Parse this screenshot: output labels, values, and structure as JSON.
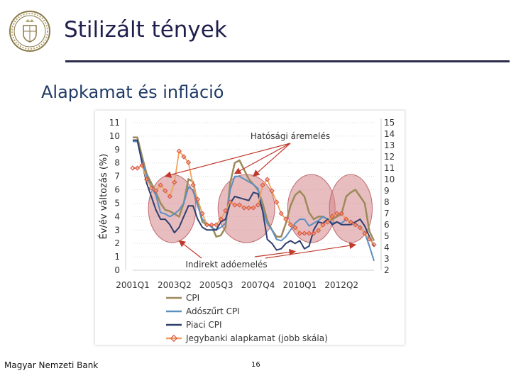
{
  "header": {
    "title": "Stilizált tények",
    "subtitle": "Alapkamat és infláció"
  },
  "footer": {
    "org": "Magyar Nemzeti Bank",
    "page": "16"
  },
  "colors": {
    "cpi": "#9c8a5a",
    "adoszurt": "#5b8fc2",
    "piaci": "#2f3f6e",
    "jegybanki": "#f0a35a",
    "jegybanki_marker": "#d9534f",
    "ellipse_fill": "#d4878a",
    "arrow": "#c0392b",
    "title": "#1f1f4d"
  },
  "chart_data": {
    "type": "line",
    "ylabel": "Év/év változás (%)",
    "ylim": [
      0,
      11
    ],
    "y2lim": [
      2,
      15
    ],
    "yticks": [
      "0",
      "1",
      "2",
      "3",
      "4",
      "5",
      "6",
      "7",
      "8",
      "9",
      "10",
      "11"
    ],
    "y2ticks": [
      "2",
      "3",
      "4",
      "5",
      "6",
      "7",
      "8",
      "9",
      "10",
      "11",
      "12",
      "13",
      "14",
      "15"
    ],
    "xticklabels": [
      {
        "label": "2001Q1",
        "i": 0
      },
      {
        "label": "2003Q2",
        "i": 9
      },
      {
        "label": "2005Q3",
        "i": 18
      },
      {
        "label": "2007Q4",
        "i": 27
      },
      {
        "label": "2010Q1",
        "i": 36
      },
      {
        "label": "2012Q2",
        "i": 45
      }
    ],
    "annotations": [
      {
        "text": "Hatósági áremelés",
        "position": "top"
      },
      {
        "text": "Indirekt adóemelés",
        "position": "bottom"
      }
    ],
    "highlight_periods": [
      {
        "start": 4,
        "end": 13
      },
      {
        "start": 19,
        "end": 30
      },
      {
        "start": 34,
        "end": 43
      },
      {
        "start": 43,
        "end": 51
      }
    ],
    "series": [
      {
        "name": "CPI",
        "axis": "left",
        "values": [
          9.9,
          9.9,
          8.5,
          7.2,
          6.5,
          5.8,
          5.0,
          4.5,
          4.4,
          4.2,
          4.0,
          5.0,
          6.8,
          6.6,
          5.0,
          3.6,
          3.4,
          3.3,
          2.5,
          2.6,
          3.2,
          6.5,
          8.0,
          8.2,
          7.5,
          6.8,
          6.4,
          6.0,
          5.0,
          3.7,
          3.0,
          2.5,
          2.5,
          3.5,
          4.8,
          5.6,
          5.9,
          5.5,
          4.3,
          3.8,
          4.0,
          4.0,
          3.8,
          3.8,
          4.0,
          4.2,
          5.5,
          5.8,
          6.0,
          5.5,
          5.0,
          2.9,
          2.2
        ]
      },
      {
        "name": "Adószűrt CPI",
        "axis": "left",
        "values": [
          9.6,
          9.6,
          8.2,
          7.0,
          6.2,
          5.6,
          4.3,
          4.2,
          4.0,
          4.2,
          4.5,
          5.0,
          6.2,
          6.0,
          4.8,
          3.8,
          3.5,
          3.2,
          3.0,
          3.2,
          3.5,
          6.0,
          7.0,
          7.0,
          6.8,
          6.6,
          6.4,
          6.1,
          4.5,
          3.5,
          3.0,
          2.3,
          2.2,
          2.5,
          3.0,
          3.5,
          3.8,
          3.8,
          3.3,
          3.5,
          3.7,
          4.0,
          3.8,
          3.5,
          3.6,
          3.5,
          3.8,
          3.6,
          3.5,
          3.2,
          2.8,
          1.8,
          0.7
        ]
      },
      {
        "name": "Piaci CPI",
        "axis": "left",
        "values": [
          9.7,
          9.7,
          8.0,
          6.5,
          5.5,
          4.5,
          3.8,
          3.8,
          3.4,
          2.8,
          3.2,
          4.0,
          4.8,
          4.8,
          3.8,
          3.2,
          3.0,
          3.0,
          3.0,
          3.6,
          3.8,
          5.0,
          5.5,
          5.4,
          5.3,
          5.2,
          5.8,
          5.7,
          4.4,
          2.3,
          2.0,
          1.5,
          1.6,
          2.0,
          2.2,
          2.0,
          2.2,
          1.6,
          1.8,
          3.0,
          3.6,
          3.5,
          3.8,
          3.4,
          3.6,
          3.4,
          3.4,
          3.4,
          3.6,
          3.8,
          3.3,
          2.5,
          1.8
        ]
      },
      {
        "name": "Jegybanki alapkamat (jobb skála)",
        "axis": "right",
        "values": [
          11.0,
          11.0,
          11.25,
          10.0,
          9.25,
          9.0,
          9.5,
          9.0,
          8.5,
          9.75,
          12.5,
          12.0,
          11.5,
          9.5,
          8.25,
          7.0,
          6.0,
          6.0,
          6.0,
          6.5,
          7.25,
          8.0,
          7.75,
          7.75,
          7.5,
          7.5,
          7.5,
          7.75,
          9.5,
          10.0,
          9.0,
          8.0,
          7.0,
          6.5,
          6.0,
          5.75,
          5.25,
          5.25,
          5.25,
          5.25,
          5.5,
          6.0,
          6.25,
          6.75,
          7.0,
          7.0,
          6.5,
          6.25,
          6.0,
          5.75,
          5.25,
          4.75,
          4.25
        ]
      }
    ]
  }
}
